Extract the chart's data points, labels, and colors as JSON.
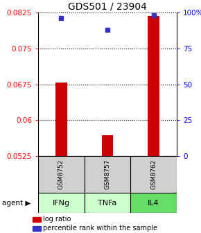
{
  "title": "GDS501 / 23904",
  "categories": [
    "GSM8752",
    "GSM8757",
    "GSM8762"
  ],
  "agents": [
    "IFNg",
    "TNFa",
    "IL4"
  ],
  "log_ratio_values": [
    0.0678,
    0.0568,
    0.0818
  ],
  "percentile_values": [
    96,
    88,
    98
  ],
  "ylim_left": [
    0.0525,
    0.0825
  ],
  "ylim_right": [
    0,
    100
  ],
  "yticks_left": [
    0.0525,
    0.06,
    0.0675,
    0.075,
    0.0825
  ],
  "ytick_labels_left": [
    "0.0525",
    "0.06",
    "0.0675",
    "0.075",
    "0.0825"
  ],
  "yticks_right": [
    0,
    25,
    50,
    75,
    100
  ],
  "ytick_labels_right": [
    "0",
    "25",
    "50",
    "75",
    "100%"
  ],
  "bar_color": "#cc0000",
  "dot_color": "#3333cc",
  "bar_width": 0.25,
  "sample_bg_color": "#d0d0d0",
  "agent_colors": [
    "#ccffcc",
    "#ccffcc",
    "#66dd66"
  ],
  "legend_bar_label": "log ratio",
  "legend_dot_label": "percentile rank within the sample",
  "title_fontsize": 10,
  "tick_fontsize": 7.5
}
